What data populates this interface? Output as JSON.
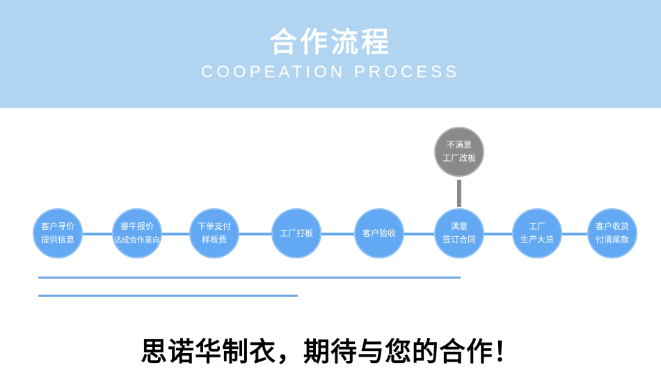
{
  "header": {
    "title": "合作流程",
    "subtitle": "COOPEATION PROCESS"
  },
  "steps": [
    {
      "line1": "客户寻价",
      "line2": "提供信息"
    },
    {
      "line1": "睿牛报价",
      "line2": "达成合作意向"
    },
    {
      "line1": "下单支付",
      "line2": "样板费"
    },
    {
      "line1": "工厂打板",
      "line2": ""
    },
    {
      "line1": "客户验收",
      "line2": ""
    },
    {
      "line1": "满意",
      "line2": "签订合同"
    },
    {
      "line1": "工厂",
      "line2": "生产大货"
    },
    {
      "line1": "客户收货",
      "line2": "付清尾款"
    }
  ],
  "branch": {
    "line1": "不满意",
    "line2": "工厂改板"
  },
  "slogan": "思诺华制衣，期待与您的合作！",
  "colors": {
    "header": "#b1d5f1",
    "step": "#62a8f2",
    "branch": "#8a8a8a"
  }
}
